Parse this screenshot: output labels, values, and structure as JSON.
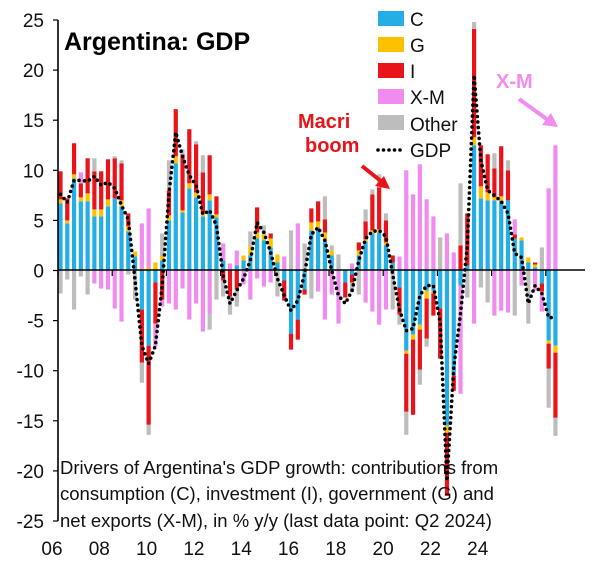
{
  "chart_data": {
    "type": "bar",
    "stacked": true,
    "title": "Argentina: GDP",
    "caption_lines": [
      "Drivers of Argentina's GDP growth: contributions from",
      "consumption (C), investment (I), government (G) and",
      "net exports (X-M), in % y/y (last data point: Q2 2024)"
    ],
    "x_tick_labels": [
      "06",
      "08",
      "10",
      "12",
      "14",
      "16",
      "18",
      "20",
      "22",
      "24"
    ],
    "y_tick_labels": [
      "25",
      "20",
      "15",
      "10",
      "5",
      "0",
      "-5",
      "-10",
      "-15",
      "-20",
      "-25"
    ],
    "ylim": [
      -25,
      25
    ],
    "first_period": "2006Q1",
    "last_period": "2024Q2",
    "legend_position": "top-right",
    "legend": [
      {
        "label": "C",
        "color": "#23aee6"
      },
      {
        "label": "G",
        "color": "#ffc000"
      },
      {
        "label": "I",
        "color": "#e8141a"
      },
      {
        "label": "X-M",
        "color": "#f08cf0"
      },
      {
        "label": "Other",
        "color": "#bdbdbd"
      },
      {
        "label": "GDP",
        "color": "#000000"
      }
    ],
    "annotations": [
      {
        "text_lines": [
          "Macri",
          "boom"
        ],
        "color": "#e8141a"
      },
      {
        "text_lines": [
          "X-M"
        ],
        "color": "#f08cf0"
      }
    ],
    "series_order": [
      "C",
      "G",
      "I",
      "X-M",
      "Other",
      "GDP"
    ],
    "values": [
      [
        6.7,
        0.4,
        2.8,
        0,
        -2.3,
        7.6
      ],
      [
        4.7,
        0.3,
        2.2,
        0,
        -0.9,
        6.8
      ],
      [
        9.2,
        0.4,
        3.1,
        0,
        -3.9,
        9.0
      ],
      [
        6.9,
        0.4,
        1.4,
        1.1,
        -0.6,
        9.0
      ],
      [
        6.9,
        0.8,
        3.5,
        0,
        -2.4,
        8.9
      ],
      [
        5.4,
        0.7,
        3.8,
        -1.3,
        1.3,
        9.4
      ],
      [
        5.4,
        0.7,
        3.8,
        -1.8,
        0,
        8.5
      ],
      [
        6.4,
        0.7,
        4.0,
        -1.9,
        0,
        8.8
      ],
      [
        7.2,
        0,
        4.0,
        -3.8,
        0.2,
        8.2
      ],
      [
        6.4,
        0.6,
        3.7,
        -5.1,
        0.3,
        6.5
      ],
      [
        3.9,
        0.5,
        1.3,
        0,
        -0.4,
        5.1
      ],
      [
        1.4,
        0.5,
        0,
        0,
        -2.9,
        -1.0
      ],
      [
        -3.9,
        0.2,
        -5.3,
        4.5,
        -2.0,
        -7.5
      ],
      [
        -7.5,
        0.3,
        -7.9,
        5.9,
        -1.0,
        -9.3
      ],
      [
        -1.2,
        0.8,
        -4.1,
        -2.3,
        0,
        -7.5
      ],
      [
        1.0,
        0.5,
        -2.9,
        -0.7,
        2.2,
        -1.5
      ],
      [
        5.0,
        0.5,
        2.5,
        -3.3,
        3.0,
        7.7
      ],
      [
        10.7,
        0.7,
        4.7,
        -3.9,
        0,
        13.8
      ],
      [
        5.8,
        0.2,
        5.6,
        -1.8,
        0.5,
        11.4
      ],
      [
        8.2,
        0.5,
        5.4,
        -4.9,
        0,
        9.5
      ],
      [
        7.3,
        0.5,
        4.8,
        -3.3,
        0.3,
        8.5
      ],
      [
        5.4,
        0.4,
        4.0,
        -6.1,
        1.7,
        5.6
      ],
      [
        7.0,
        0.6,
        3.9,
        -4.3,
        -1.6,
        6.0
      ],
      [
        5.3,
        0.3,
        1.8,
        0,
        -2.9,
        4.5
      ],
      [
        1.0,
        0,
        -1.0,
        1.7,
        -1.6,
        -0.5
      ],
      [
        0,
        0,
        -2.6,
        0.7,
        -1.8,
        -3.3
      ],
      [
        0.5,
        0,
        -1.9,
        1.5,
        -1.7,
        -2.0
      ],
      [
        1.0,
        0.5,
        0,
        -1.4,
        0,
        -0.8
      ],
      [
        1.5,
        0.9,
        0,
        -2.9,
        1.5,
        1.0
      ],
      [
        3.2,
        0.6,
        2.5,
        -0.8,
        0,
        4.8
      ],
      [
        3.0,
        0.6,
        0,
        -1.6,
        0.9,
        3.8
      ],
      [
        2.3,
        0.9,
        0.5,
        -1.2,
        0,
        1.8
      ],
      [
        0.8,
        0.8,
        0,
        0,
        -2.6,
        -0.8
      ],
      [
        -1.0,
        0,
        -2.0,
        1.4,
        0,
        -2.5
      ],
      [
        -6.3,
        0,
        -1.6,
        0,
        4.0,
        -4.0
      ],
      [
        -4.9,
        0,
        -2.0,
        4.7,
        0,
        -3.0
      ],
      [
        -1.9,
        0,
        -0.5,
        0,
        2.7,
        -0.3
      ],
      [
        4.0,
        0.8,
        1.4,
        0,
        -2.8,
        3.6
      ],
      [
        4.3,
        0.6,
        2.0,
        -2.1,
        0,
        4.3
      ],
      [
        2.9,
        0.9,
        1.3,
        -4.9,
        2.3,
        3.0
      ],
      [
        1.5,
        0.5,
        0,
        -2.4,
        0.5,
        0
      ],
      [
        0,
        0,
        0,
        -5.3,
        1.6,
        -2.5
      ],
      [
        -1.2,
        0,
        -1.5,
        0,
        0,
        -3.3
      ],
      [
        -0.4,
        0,
        -0.8,
        0.7,
        -1.0,
        -2.0
      ],
      [
        1.5,
        0.5,
        0.8,
        0,
        -2.4,
        1.0
      ],
      [
        2.9,
        0.2,
        1.8,
        -3.2,
        1.2,
        3.2
      ],
      [
        3.7,
        0.3,
        3.6,
        -4.1,
        0.5,
        3.9
      ],
      [
        3.8,
        0.3,
        4.2,
        -5.4,
        1.3,
        4.0
      ],
      [
        2.5,
        0.3,
        2.2,
        -3.9,
        0.7,
        3.4
      ],
      [
        0.8,
        0,
        0.7,
        0,
        -3.9,
        -0.4
      ],
      [
        -1.7,
        0,
        -2.7,
        1.4,
        -1.0,
        -3.9
      ],
      [
        -8.0,
        -0.3,
        -5.8,
        10.0,
        -2.3,
        -6.0
      ],
      [
        -6.4,
        -0.5,
        -7.5,
        7.6,
        0,
        -5.8
      ],
      [
        -5.4,
        -0.5,
        -4.0,
        10.6,
        -1.5,
        -2.5
      ],
      [
        -2.0,
        -0.8,
        -4.0,
        7.1,
        -0.8,
        -1.5
      ],
      [
        -2.0,
        -0.3,
        -2.2,
        5.4,
        0,
        -1.5
      ],
      [
        -3.8,
        0,
        -5.0,
        0,
        3.3,
        -5.2
      ],
      [
        -15.5,
        -0.7,
        -6.3,
        3.7,
        0,
        -21.0
      ],
      [
        -10.5,
        0,
        -1.5,
        1.8,
        0,
        -9.7
      ],
      [
        -1.5,
        0,
        2.5,
        -10.8,
        6.2,
        -4.3
      ],
      [
        0.5,
        0,
        5.2,
        0,
        -2.7,
        2.5
      ],
      [
        12.5,
        0.8,
        10.8,
        -5.3,
        0.7,
        19.5
      ],
      [
        7.2,
        1.2,
        4.1,
        0,
        -1.7,
        11.0
      ],
      [
        7.0,
        0.8,
        3.8,
        0,
        -3.2,
        8.0
      ],
      [
        7.0,
        0.3,
        2.9,
        -4.5,
        1.5,
        7.5
      ],
      [
        7.0,
        0.4,
        5.0,
        -4.0,
        0,
        6.9
      ],
      [
        7.0,
        0,
        3.0,
        -4.2,
        1.0,
        5.7
      ],
      [
        3.2,
        0,
        0.4,
        1.5,
        -4.5,
        1.7
      ],
      [
        3.0,
        0.3,
        0,
        -1.5,
        0,
        1.3
      ],
      [
        0.8,
        0.5,
        0,
        0,
        -5.3,
        -3.3
      ],
      [
        0.3,
        0.3,
        0.2,
        -2.0,
        0,
        -1.5
      ],
      [
        -1.3,
        0,
        -0.8,
        -2.0,
        2.3,
        -2.3
      ],
      [
        -7.0,
        -0.3,
        -2.5,
        8.2,
        -3.9,
        -4.7
      ],
      [
        -7.5,
        -0.7,
        -6.5,
        12.5,
        -1.8,
        -4.7
      ]
    ]
  }
}
